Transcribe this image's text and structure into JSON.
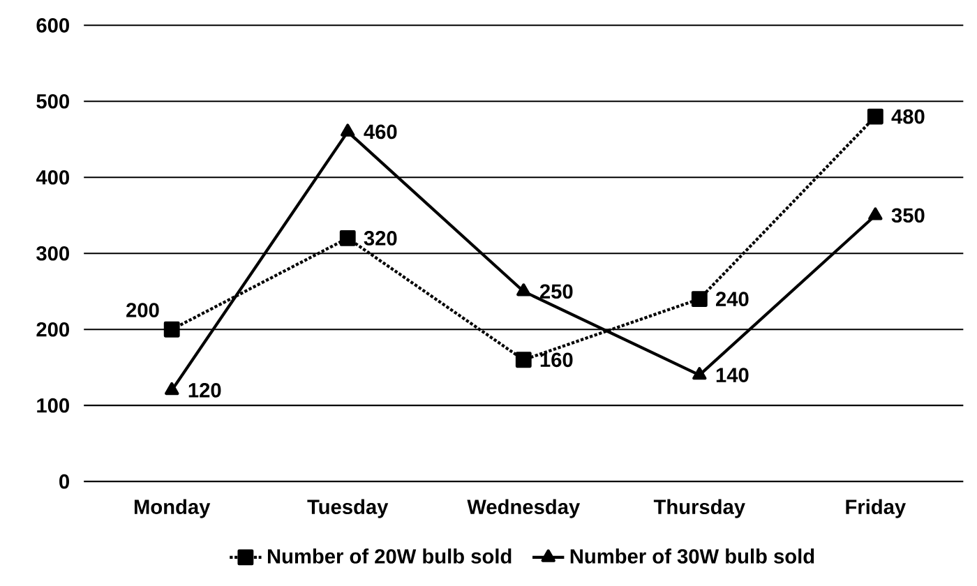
{
  "chart_data": {
    "type": "line",
    "categories": [
      "Monday",
      "Tuesday",
      "Wednesday",
      "Thursday",
      "Friday"
    ],
    "series": [
      {
        "name": "Number of 20W bulb sold",
        "color": "#000000",
        "values": [
          200,
          320,
          160,
          240,
          480
        ],
        "marker": "square",
        "line_style": "dotted"
      },
      {
        "name": "Number of 30W bulb sold",
        "color": "#000000",
        "values": [
          120,
          460,
          250,
          140,
          350
        ],
        "marker": "triangle",
        "line_style": "solid"
      }
    ],
    "ylim": [
      0,
      600
    ],
    "yticks": [
      0,
      100,
      200,
      300,
      400,
      500,
      600
    ],
    "grid": "y",
    "legend": "bottom",
    "data_labels": true
  }
}
